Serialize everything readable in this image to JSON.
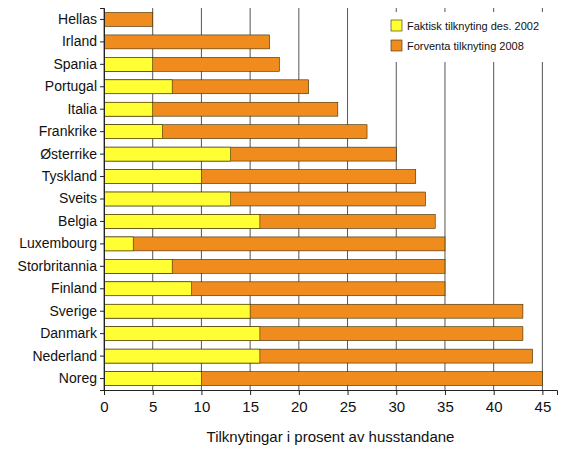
{
  "chart_data": {
    "type": "bar",
    "orientation": "horizontal",
    "x_label": "Tilknytingar i prosent av husstandane",
    "categories": [
      "Hellas",
      "Irland",
      "Spania",
      "Portugal",
      "Italia",
      "Frankrike",
      "Østerrike",
      "Tyskland",
      "Sveits",
      "Belgia",
      "Luxembourg",
      "Storbritannia",
      "Finland",
      "Sverige",
      "Danmark",
      "Nederland",
      "Noreg"
    ],
    "series": [
      {
        "name": "Faktisk tilknyting des. 2002",
        "color": "#ffff33",
        "values": [
          0,
          0,
          5,
          7,
          5,
          6,
          13,
          10,
          13,
          16,
          3,
          7,
          9,
          15,
          16,
          16,
          10
        ]
      },
      {
        "name": "Forventa tilknyting 2008",
        "color": "#f08c1e",
        "values": [
          5,
          17,
          18,
          21,
          24,
          27,
          30,
          32,
          33,
          34,
          35,
          35,
          35,
          43,
          43,
          44,
          45
        ]
      }
    ],
    "xlim": [
      0,
      46.5
    ],
    "xticks": [
      0,
      5,
      10,
      15,
      20,
      25,
      30,
      35,
      40,
      45
    ],
    "grid": true,
    "legend": "upper right"
  }
}
